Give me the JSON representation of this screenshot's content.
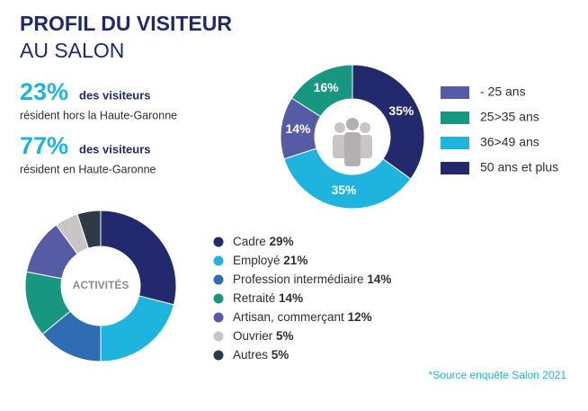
{
  "header": {
    "title": "PROFIL DU VISITEUR",
    "subtitle": "AU SALON"
  },
  "stats": [
    {
      "value": "23%",
      "bold": "des visiteurs",
      "text": "résident hors la Haute-Garonne"
    },
    {
      "value": "77%",
      "bold": "des visiteurs",
      "text": "résident en Haute-Garonne"
    }
  ],
  "chart_data": [
    {
      "type": "donut",
      "categories": [
        "- 25 ans",
        "25>35 ans",
        "36>49 ans",
        "50 ans et plus"
      ],
      "values": [
        14,
        16,
        35,
        35
      ],
      "value_labels": [
        "14%",
        "16%",
        "35%",
        "35%"
      ],
      "colors": [
        "#565ba6",
        "#17977f",
        "#1fb4de",
        "#22296c"
      ]
    },
    {
      "type": "donut",
      "center_label": "ACTIVITÉS",
      "categories": [
        "Cadre",
        "Employé",
        "Profession intermédiaire",
        "Retraité",
        "Artisan, commerçant",
        "Ouvrier",
        "Autres"
      ],
      "values": [
        29,
        21,
        14,
        14,
        12,
        5,
        5
      ],
      "value_labels": [
        "29%",
        "21%",
        "14%",
        "14%",
        "12%",
        "5%",
        "5%"
      ],
      "colors": [
        "#22296c",
        "#1fb4de",
        "#2f6cb3",
        "#17977f",
        "#565ba6",
        "#c9c5c5",
        "#2e3947"
      ]
    }
  ],
  "source": "*Source enquête Salon 2021"
}
